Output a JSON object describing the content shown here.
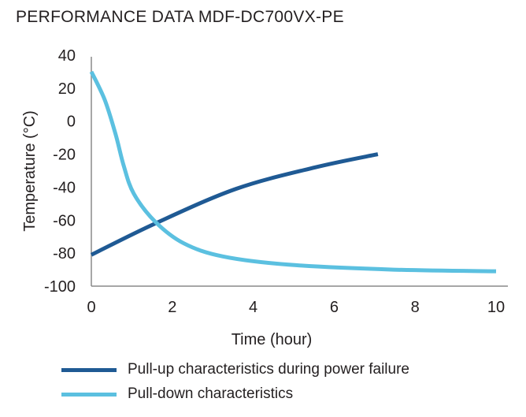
{
  "title": "PERFORMANCE DATA MDF-DC700VX-PE",
  "chart_data": {
    "type": "line",
    "title": "PERFORMANCE DATA MDF-DC700VX-PE",
    "xlabel": "Time (hour)",
    "ylabel": "Temperature (°C)",
    "xlim": [
      0,
      10
    ],
    "ylim": [
      -100,
      40
    ],
    "xticks": [
      "0",
      "2",
      "4",
      "6",
      "8",
      "10"
    ],
    "yticks": [
      "40",
      "20",
      "0",
      "-20",
      "-40",
      "-60",
      "-80",
      "-100"
    ],
    "grid": false,
    "legend_position": "bottom",
    "series": [
      {
        "name": "Pull-up characteristics during power failure",
        "color": "#1f5a94",
        "x": [
          0,
          1.58,
          3.58,
          5.53,
          7.08
        ],
        "y": [
          -81,
          -62,
          -41,
          -28,
          -20
        ]
      },
      {
        "name": "Pull-down characteristics",
        "color": "#5bc0e0",
        "x": [
          0,
          0.33,
          0.6,
          0.8,
          1.05,
          1.58,
          2.28,
          3.25,
          4.88,
          7.47,
          10
        ],
        "y": [
          30,
          13,
          -8,
          -27,
          -44,
          -61,
          -74,
          -82,
          -87,
          -90,
          -91
        ]
      }
    ]
  }
}
